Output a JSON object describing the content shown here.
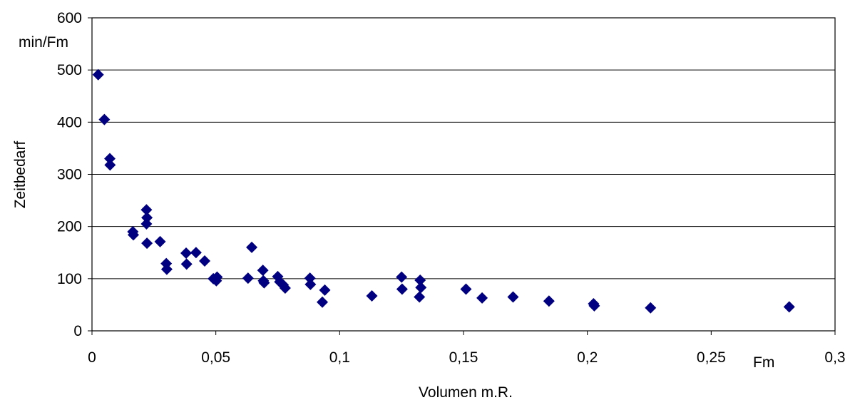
{
  "chart_data": {
    "type": "scatter",
    "title": "",
    "xlabel": "Volumen m.R.",
    "ylabel": "Zeitbedarf",
    "x_unit": "Fm",
    "y_unit": "min/Fm",
    "xlim": [
      0,
      0.3
    ],
    "ylim": [
      0,
      600
    ],
    "x_ticks": [
      0,
      0.05,
      0.1,
      0.15,
      0.2,
      0.25,
      0.3
    ],
    "x_tick_labels": [
      "0",
      "0,05",
      "0,1",
      "0,15",
      "0,2",
      "0,25",
      "0,3"
    ],
    "y_ticks": [
      0,
      100,
      200,
      300,
      400,
      500,
      600
    ],
    "y_tick_labels": [
      "0",
      "100",
      "200",
      "300",
      "400",
      "500",
      "600"
    ],
    "grid": "horizontal",
    "marker": "diamond",
    "point_color": "#000080",
    "points": [
      [
        0.0025,
        491
      ],
      [
        0.005,
        405
      ],
      [
        0.0072,
        330
      ],
      [
        0.0073,
        318
      ],
      [
        0.0165,
        190
      ],
      [
        0.0167,
        184
      ],
      [
        0.022,
        232
      ],
      [
        0.0222,
        217
      ],
      [
        0.022,
        205
      ],
      [
        0.0222,
        168
      ],
      [
        0.0275,
        171
      ],
      [
        0.03,
        129
      ],
      [
        0.0302,
        118
      ],
      [
        0.038,
        149
      ],
      [
        0.0382,
        128
      ],
      [
        0.042,
        150
      ],
      [
        0.0455,
        134
      ],
      [
        0.049,
        100
      ],
      [
        0.0502,
        96
      ],
      [
        0.0505,
        103
      ],
      [
        0.063,
        101
      ],
      [
        0.0645,
        160
      ],
      [
        0.069,
        116
      ],
      [
        0.0692,
        96
      ],
      [
        0.0695,
        92
      ],
      [
        0.075,
        104
      ],
      [
        0.0758,
        94
      ],
      [
        0.0772,
        88
      ],
      [
        0.078,
        82
      ],
      [
        0.088,
        101
      ],
      [
        0.0882,
        89
      ],
      [
        0.093,
        55
      ],
      [
        0.094,
        78
      ],
      [
        0.113,
        67
      ],
      [
        0.125,
        103
      ],
      [
        0.1252,
        80
      ],
      [
        0.1325,
        97
      ],
      [
        0.1328,
        83
      ],
      [
        0.1322,
        65
      ],
      [
        0.151,
        80
      ],
      [
        0.1575,
        63
      ],
      [
        0.17,
        65
      ],
      [
        0.1845,
        57
      ],
      [
        0.2025,
        52
      ],
      [
        0.2028,
        48
      ],
      [
        0.2255,
        44
      ],
      [
        0.2815,
        46
      ]
    ]
  }
}
